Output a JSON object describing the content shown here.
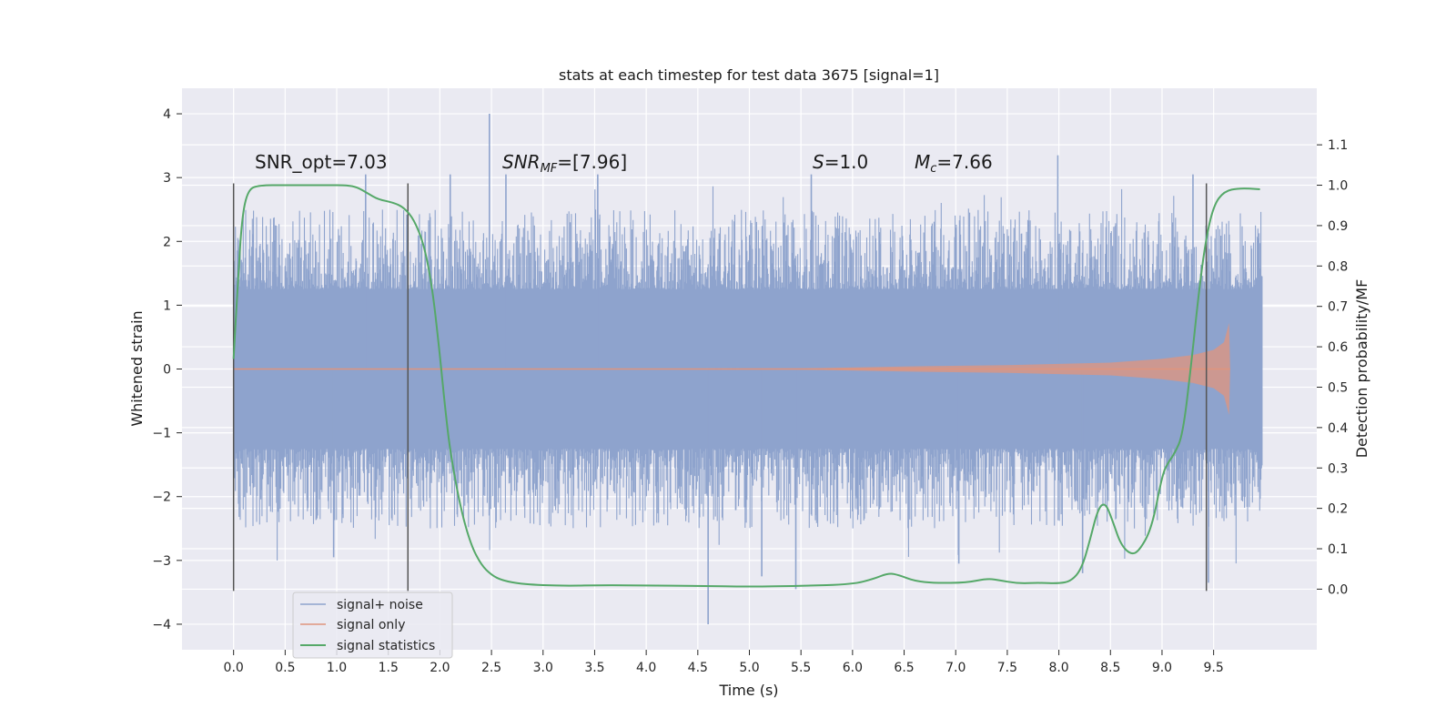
{
  "chart_data": {
    "type": "line",
    "title": "stats at each timestep for test data 3675 [signal=1]",
    "xlabel": "Time (s)",
    "ylabel": "Whitened strain",
    "ylabel_right": "Detection probability/MF",
    "xlim": [
      -0.5,
      10.5
    ],
    "ylim": [
      -4.4,
      4.4
    ],
    "ylim_right": [
      -0.15,
      1.24
    ],
    "x_ticks": [
      "0.0",
      "0.5",
      "1.0",
      "1.5",
      "2.0",
      "2.5",
      "3.0",
      "3.5",
      "4.0",
      "4.5",
      "5.0",
      "5.5",
      "6.0",
      "6.5",
      "7.0",
      "7.5",
      "8.0",
      "8.5",
      "9.0",
      "9.5"
    ],
    "x_tick_values": [
      0,
      0.5,
      1,
      1.5,
      2,
      2.5,
      3,
      3.5,
      4,
      4.5,
      5,
      5.5,
      6,
      6.5,
      7,
      7.5,
      8,
      8.5,
      9,
      9.5
    ],
    "y_ticks": [
      "4",
      "3",
      "2",
      "1",
      "0",
      "−1",
      "−2",
      "−3",
      "−4"
    ],
    "y_tick_values": [
      4,
      3,
      2,
      1,
      0,
      -1,
      -2,
      -3,
      -4
    ],
    "y2_ticks": [
      "1.1",
      "1.0",
      "0.9",
      "0.8",
      "0.7",
      "0.6",
      "0.5",
      "0.4",
      "0.3",
      "0.2",
      "0.1",
      "0.0"
    ],
    "y2_tick_values": [
      1.1,
      1.0,
      0.9,
      0.8,
      0.7,
      0.6,
      0.5,
      0.4,
      0.3,
      0.2,
      0.1,
      0.0
    ],
    "grid": true,
    "legend_position": "lower-left",
    "annotations": {
      "snr_opt": "SNR_opt=7.03",
      "snr_mf_prefix": "SNR",
      "snr_mf_sub": "MF",
      "snr_mf_suffix": "=[7.96]",
      "s_label": "S",
      "s_value": "=1.0",
      "mc_label": "M",
      "mc_sub": "c",
      "mc_value": "=7.66"
    },
    "vertical_markers": [
      0.0,
      1.69,
      9.43
    ],
    "series": [
      {
        "name": "signal+ noise",
        "color": "#8ea3cd",
        "t_range": [
          0.0,
          9.97
        ],
        "envelope": {
          "core": 1.25,
          "typical_peak": 2.1
        },
        "spikes": [
          {
            "t": 2.48,
            "v": 4.0
          },
          {
            "t": 7.99,
            "v": 3.35
          },
          {
            "t": 5.6,
            "v": 3.05
          },
          {
            "t": 1.28,
            "v": 3.05
          },
          {
            "t": 3.53,
            "v": 3.05
          },
          {
            "t": 2.64,
            "v": 3.05
          },
          {
            "t": 2.1,
            "v": 3.05
          },
          {
            "t": 9.3,
            "v": 3.05
          },
          {
            "t": 4.6,
            "v": -4.0
          },
          {
            "t": 5.45,
            "v": -3.45
          },
          {
            "t": 9.45,
            "v": -3.35
          },
          {
            "t": 5.12,
            "v": -3.25
          },
          {
            "t": 8.23,
            "v": -3.2
          },
          {
            "t": 0.97,
            "v": -2.95
          },
          {
            "t": 7.03,
            "v": -3.05
          }
        ]
      },
      {
        "name": "signal only",
        "color": "#e0947c",
        "envelope_points": [
          [
            0.0,
            0.0
          ],
          [
            5.5,
            0.008
          ],
          [
            6.5,
            0.04
          ],
          [
            7.5,
            0.06
          ],
          [
            8.5,
            0.1
          ],
          [
            9.0,
            0.16
          ],
          [
            9.3,
            0.22
          ],
          [
            9.5,
            0.3
          ],
          [
            9.6,
            0.42
          ],
          [
            9.65,
            0.72
          ],
          [
            9.66,
            0.0
          ]
        ]
      },
      {
        "name": "signal statistics",
        "color": "#55a868",
        "axis": "right",
        "points": [
          [
            0.0,
            0.57
          ],
          [
            0.04,
            0.75
          ],
          [
            0.08,
            0.92
          ],
          [
            0.14,
            0.99
          ],
          [
            0.25,
            1.0
          ],
          [
            0.5,
            1.0
          ],
          [
            0.9,
            1.0
          ],
          [
            1.1,
            1.0
          ],
          [
            1.2,
            0.995
          ],
          [
            1.3,
            0.98
          ],
          [
            1.4,
            0.965
          ],
          [
            1.55,
            0.957
          ],
          [
            1.65,
            0.945
          ],
          [
            1.75,
            0.915
          ],
          [
            1.85,
            0.85
          ],
          [
            1.93,
            0.74
          ],
          [
            2.0,
            0.58
          ],
          [
            2.05,
            0.45
          ],
          [
            2.1,
            0.34
          ],
          [
            2.2,
            0.2
          ],
          [
            2.3,
            0.11
          ],
          [
            2.4,
            0.06
          ],
          [
            2.5,
            0.035
          ],
          [
            2.6,
            0.022
          ],
          [
            2.8,
            0.012
          ],
          [
            3.2,
            0.008
          ],
          [
            3.6,
            0.01
          ],
          [
            4.0,
            0.009
          ],
          [
            4.5,
            0.008
          ],
          [
            5.0,
            0.006
          ],
          [
            5.5,
            0.008
          ],
          [
            6.0,
            0.012
          ],
          [
            6.2,
            0.025
          ],
          [
            6.35,
            0.04
          ],
          [
            6.45,
            0.035
          ],
          [
            6.6,
            0.02
          ],
          [
            6.8,
            0.015
          ],
          [
            7.1,
            0.016
          ],
          [
            7.3,
            0.026
          ],
          [
            7.4,
            0.023
          ],
          [
            7.6,
            0.014
          ],
          [
            7.8,
            0.016
          ],
          [
            8.0,
            0.014
          ],
          [
            8.12,
            0.02
          ],
          [
            8.22,
            0.05
          ],
          [
            8.3,
            0.12
          ],
          [
            8.38,
            0.2
          ],
          [
            8.45,
            0.215
          ],
          [
            8.52,
            0.17
          ],
          [
            8.6,
            0.11
          ],
          [
            8.7,
            0.085
          ],
          [
            8.78,
            0.095
          ],
          [
            8.9,
            0.15
          ],
          [
            9.0,
            0.28
          ],
          [
            9.05,
            0.31
          ],
          [
            9.12,
            0.335
          ],
          [
            9.2,
            0.38
          ],
          [
            9.28,
            0.55
          ],
          [
            9.35,
            0.72
          ],
          [
            9.42,
            0.86
          ],
          [
            9.5,
            0.95
          ],
          [
            9.6,
            0.985
          ],
          [
            9.75,
            0.993
          ],
          [
            9.95,
            0.99
          ]
        ]
      }
    ]
  }
}
